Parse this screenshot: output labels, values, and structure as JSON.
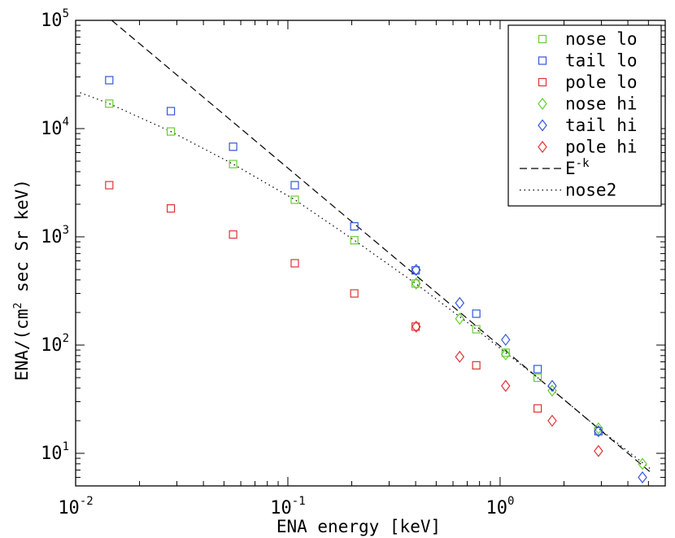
{
  "chart_data": {
    "type": "scatter",
    "title": "",
    "xlabel": "ENA energy [keV]",
    "ylabel_prefix": "ENA/(cm",
    "ylabel_sup": "2",
    "ylabel_suffix": " sec Sr keV)",
    "xscale": "log",
    "yscale": "log",
    "xlim": [
      0.01,
      6
    ],
    "ylim": [
      5,
      100000
    ],
    "x_ticks": [
      {
        "value": 0.01,
        "base": "10",
        "exp": "-2"
      },
      {
        "value": 0.1,
        "base": "10",
        "exp": "-1"
      },
      {
        "value": 1,
        "base": "10",
        "exp": "0"
      }
    ],
    "y_ticks": [
      {
        "value": 10,
        "base": "10",
        "exp": "1"
      },
      {
        "value": 100,
        "base": "10",
        "exp": "2"
      },
      {
        "value": 1000,
        "base": "10",
        "exp": "3"
      },
      {
        "value": 10000,
        "base": "10",
        "exp": "4"
      },
      {
        "value": 100000,
        "base": "10",
        "exp": "5"
      }
    ],
    "legend_position": "top-right",
    "series": [
      {
        "name": "nose lo",
        "marker": "square",
        "color": "#66cc33",
        "x": [
          0.0144,
          0.0281,
          0.0552,
          0.1078,
          0.2056,
          0.3999,
          0.7724,
          1.0621,
          1.5029
        ],
        "y": [
          17000,
          9400,
          4700,
          2200,
          930,
          370,
          140,
          85,
          50
        ]
      },
      {
        "name": "tail lo",
        "marker": "square",
        "color": "#3355dd",
        "x": [
          0.0144,
          0.0281,
          0.0552,
          0.1078,
          0.2056,
          0.3999,
          0.7724,
          1.5029,
          2.9069
        ],
        "y": [
          28000,
          14500,
          6800,
          3000,
          1250,
          490,
          195,
          60,
          16
        ]
      },
      {
        "name": "pole lo",
        "marker": "square",
        "color": "#dd3333",
        "x": [
          0.0144,
          0.0281,
          0.0552,
          0.1078,
          0.2056,
          0.3999,
          0.7724,
          1.5029
        ],
        "y": [
          3000,
          1830,
          1050,
          570,
          300,
          148,
          65,
          26
        ]
      },
      {
        "name": "nose hi",
        "marker": "diamond",
        "color": "#66cc33",
        "x": [
          0.4023,
          0.6451,
          1.0621,
          1.7593,
          2.9069,
          4.6871
        ],
        "y": [
          370,
          175,
          82,
          38,
          17,
          8
        ]
      },
      {
        "name": "tail hi",
        "marker": "diamond",
        "color": "#3355dd",
        "x": [
          0.4023,
          0.6451,
          1.0621,
          1.7593,
          2.9069,
          4.6871
        ],
        "y": [
          495,
          245,
          112,
          42,
          16,
          6
        ]
      },
      {
        "name": "pole hi",
        "marker": "diamond",
        "color": "#dd3333",
        "x": [
          0.4023,
          0.6451,
          1.0621,
          1.7593,
          2.9069
        ],
        "y": [
          148,
          78,
          42,
          20,
          10.5
        ]
      }
    ],
    "lines": [
      {
        "name": "E",
        "name_sup": "-k",
        "style": "dashed",
        "color": "#000000",
        "x": [
          0.0148,
          5.2
        ],
        "y": [
          100000,
          6.5
        ]
      },
      {
        "name": "nose2",
        "style": "dotted",
        "color": "#000000",
        "x": [
          0.0105,
          0.0144,
          0.0281,
          0.0552,
          0.1078,
          0.2056,
          0.3999,
          0.7724,
          1.0621,
          1.5029,
          2.9069,
          5.2
        ],
        "y": [
          21500,
          17000,
          9400,
          4700,
          2200,
          930,
          370,
          140,
          85,
          50,
          17,
          7
        ]
      }
    ]
  }
}
